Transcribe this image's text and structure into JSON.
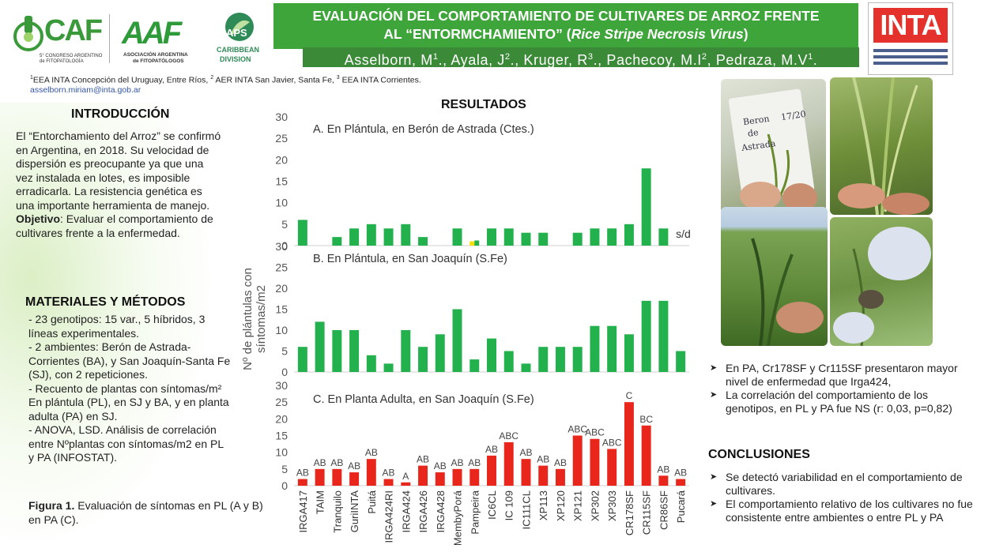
{
  "header": {
    "title_line1": "EVALUACIÓN DEL COMPORTAMIENTO DE CULTIVARES DE ARROZ FRENTE",
    "title_line2_pre": "AL “ENTORMCHAMIENTO” (",
    "title_line2_italic": "Rice Stripe Necrosis Virus",
    "title_line2_post": ")",
    "authors": [
      {
        "name": "Asselborn, M",
        "sup": "1"
      },
      {
        "name": "., Ayala, J",
        "sup": "2"
      },
      {
        "name": "., Kruger, R",
        "sup": "3"
      },
      {
        "name": "., Pachecoy, M.I",
        "sup": "2"
      },
      {
        "name": ", Pedraza, M.V",
        "sup": "1"
      },
      {
        "name": ".",
        "sup": ""
      }
    ],
    "logos": {
      "congreso_mark": "CAF",
      "congreso_caption_1": "5° CONGRESO ARGENTINO",
      "congreso_caption_2": "de FITOPATOLOGÍA",
      "aaf_mark": "AAF",
      "aaf_caption_1": "ASOCIACIÓN ARGENTINA",
      "aaf_caption_2": "de FITOPATÓLOGOS",
      "aps_mark": "APS",
      "aps_caption_1": "CARIBBEAN",
      "aps_caption_2": "DIVISION",
      "inta_mark": "INTA"
    },
    "affiliations": [
      {
        "sup": "1",
        "text": "EEA INTA  Concepción del Uruguay, Entre Ríos,  "
      },
      {
        "sup": "2",
        "text": " AER INTA San Javier, Santa Fe, "
      },
      {
        "sup": "3",
        "text": " EEA INTA Corrientes."
      }
    ],
    "email": "asselborn.miriam@inta.gob.ar"
  },
  "introduccion": {
    "heading": "INTRODUCCIÓN",
    "text_pre": " El “Entorchamiento del Arroz” se confirmó en Argentina, en 2018. Su velocidad de dispersión es preocupante ya que una vez instalada en lotes, es imposible erradicarla. La resistencia genética es una importante herramienta de manejo. ",
    "objetivo_label": "Objetivo",
    "text_post": ": Evaluar el comportamiento de cultivares frente a la enfermedad."
  },
  "materiales": {
    "heading": "MATERIALES Y MÉTODOS",
    "lines": [
      " - 23 genotipos: 15 var.,  5 híbridos, 3 líneas experimentales.",
      "- 2 ambientes: Berón de Astrada-Corrientes (BA), y San Joaquín-Santa Fe (SJ), con 2 repeticiones.",
      "- Recuento de plantas con síntomas/m² En plántula (PL), en SJ y BA, y en planta adulta (PA) en SJ.",
      "- ANOVA, LSD. Análisis de correlación entre Nºplantas con síntomas/m2 en PL y PA (INFOSTAT)."
    ]
  },
  "figure_caption": {
    "label": "Figura 1.",
    "text": " Evaluación de síntomas en PL (A y B) en PA (C)."
  },
  "resultados": {
    "heading": "RESULTADOS",
    "bullets": [
      "En PA, Cr178SF y Cr115SF presentaron mayor nivel de enfermedad que Irga424,",
      "La correlación del comportamiento de los genotipos, en PL y PA fue NS (r: 0,03, p=0,82)"
    ]
  },
  "conclusiones": {
    "heading": "CONCLUSIONES",
    "bullets": [
      "Se detectó variabilidad en el comportamiento de cultivares.",
      "El comportamiento relativo de los cultivares no fue consistente entre ambientes o entre PL y PA"
    ]
  },
  "photos": {
    "label_text_1": "Beron",
    "label_text_2": "de",
    "label_text_3": "Astrada",
    "label_text_4": "17/20"
  },
  "colors": {
    "title_green": "#3ea53a",
    "authors_green": "#3a8a37",
    "bar_green": "#22b14c",
    "bar_yellow": "#f5e000",
    "bar_red": "#e8261c",
    "inta_red": "#e4312b"
  },
  "chart_data": [
    {
      "type": "bar",
      "title": "A. En Plántula, en Berón de Astrada (Ctes.)",
      "ylabel": "Nº de plántulas con síntomas/m2",
      "ylim": [
        0,
        30
      ],
      "yticks": [
        0,
        5,
        10,
        15,
        20,
        25,
        30
      ],
      "categories": [
        "IRGA417",
        "TAIM",
        "Tranquilo",
        "GuriINTA",
        "Puitá",
        "IRGA424RI",
        "IRGA424",
        "IRGA426",
        "IRGA428",
        "MembyPorá",
        "Pampeira",
        "IC6CL",
        "IC 109",
        "IC111CL",
        "XP113",
        "XP120",
        "XP121",
        "XP302",
        "XP303",
        "CR178SF",
        "CR115SF",
        "CR86SF",
        "Pucará"
      ],
      "values": [
        6,
        0,
        2,
        4,
        5,
        4,
        5,
        2,
        0,
        4,
        1,
        4,
        4,
        3,
        3,
        0,
        3,
        4,
        4,
        5,
        18,
        4,
        null
      ],
      "highlight_index": 10,
      "annotation": "s/d",
      "grid": false
    },
    {
      "type": "bar",
      "title": "B. En Plántula, en San Joaquín (S.Fe)",
      "ylim": [
        0,
        30
      ],
      "yticks": [
        0,
        5,
        10,
        15,
        20,
        25,
        30
      ],
      "categories": [
        "IRGA417",
        "TAIM",
        "Tranquilo",
        "GuriINTA",
        "Puitá",
        "IRGA424RI",
        "IRGA424",
        "IRGA426",
        "IRGA428",
        "MembyPorá",
        "Pampeira",
        "IC6CL",
        "IC 109",
        "IC111CL",
        "XP113",
        "XP120",
        "XP121",
        "XP302",
        "XP303",
        "CR178SF",
        "CR115SF",
        "CR86SF",
        "Pucará"
      ],
      "values": [
        6,
        12,
        10,
        10,
        4,
        2,
        10,
        6,
        9,
        15,
        3,
        8,
        5,
        2,
        6,
        6,
        6,
        11,
        11,
        9,
        17,
        17,
        5
      ],
      "grid": false
    },
    {
      "type": "bar",
      "title": "C. En Planta Adulta, en San Joaquín (S.Fe)",
      "ylim": [
        0,
        30
      ],
      "yticks": [
        0,
        5,
        10,
        15,
        20,
        25,
        30
      ],
      "categories": [
        "IRGA417",
        "TAIM",
        "Tranquilo",
        "GuriINTA",
        "Puitá",
        "IRGA424RI",
        "IRGA424",
        "IRGA426",
        "IRGA428",
        "MembyPorá",
        "Pampeira",
        "IC6CL",
        "IC 109",
        "IC111CL",
        "XP113",
        "XP120",
        "XP121",
        "XP302",
        "XP303",
        "CR178SF",
        "CR115SF",
        "CR86SF",
        "Pucará"
      ],
      "values": [
        2,
        5,
        5,
        4,
        8,
        2,
        1,
        6,
        4,
        5,
        5,
        9,
        13,
        8,
        6,
        5,
        15,
        14,
        11,
        25,
        18,
        3,
        2
      ],
      "letters": [
        "AB",
        "AB",
        "AB",
        "AB",
        "AB",
        "AB",
        "A",
        "AB",
        "AB",
        "AB",
        "AB",
        "AB",
        "ABC",
        "AB",
        "AB",
        "AB",
        "ABC",
        "ABC",
        "ABC",
        "C",
        "BC",
        "AB",
        "AB"
      ],
      "grid": false
    }
  ]
}
